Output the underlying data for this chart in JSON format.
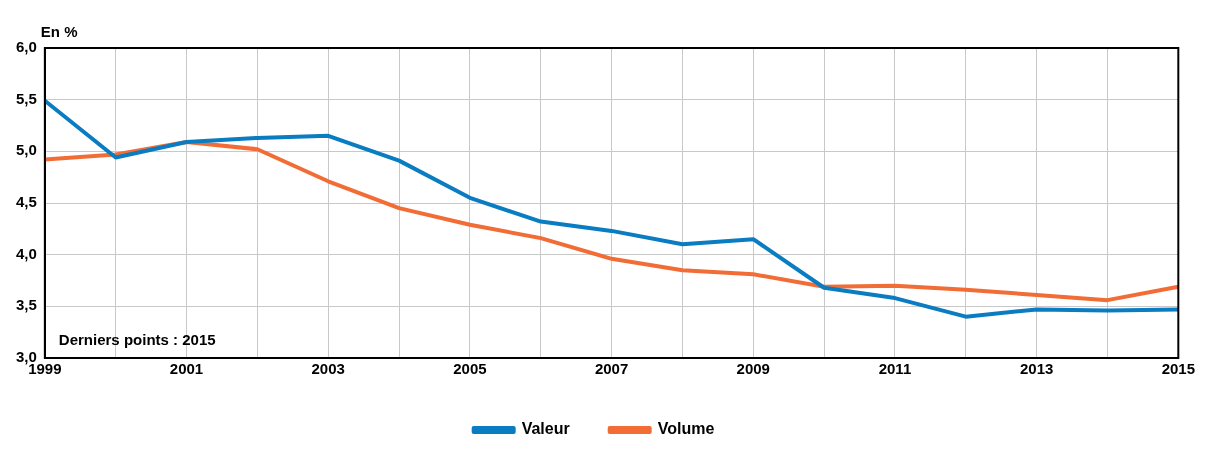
{
  "chart_data": {
    "type": "line",
    "ylabel": "En %",
    "annotations": [
      "Derniers points : 2015"
    ],
    "x": [
      1999,
      2000,
      2001,
      2002,
      2003,
      2004,
      2005,
      2006,
      2007,
      2008,
      2009,
      2010,
      2011,
      2012,
      2013,
      2014,
      2015
    ],
    "series": [
      {
        "name": "Valeur",
        "color": "#0a7cc1",
        "values": [
          5.49,
          4.94,
          5.09,
          5.13,
          5.15,
          4.91,
          4.55,
          4.32,
          4.23,
          4.1,
          4.15,
          3.68,
          3.58,
          3.4,
          3.47,
          3.46,
          3.47
        ]
      },
      {
        "name": "Volume",
        "color": "#f26c35",
        "values": [
          4.92,
          4.97,
          5.09,
          5.02,
          4.71,
          4.45,
          4.29,
          4.16,
          3.96,
          3.85,
          3.81,
          3.69,
          3.7,
          3.66,
          3.61,
          3.56,
          3.69
        ]
      }
    ],
    "xlim": [
      1999,
      2015
    ],
    "xticks": [
      1999,
      {
        "value": 2000,
        "label": null
      },
      2001,
      {
        "value": 2002,
        "label": null
      },
      2003,
      {
        "value": 2004,
        "label": null
      },
      2005,
      {
        "value": 2006,
        "label": null
      },
      2007,
      {
        "value": 2008,
        "label": null
      },
      2009,
      {
        "value": 2010,
        "label": null
      },
      2011,
      {
        "value": 2012,
        "label": null
      },
      2013,
      {
        "value": 2014,
        "label": null
      },
      2015
    ],
    "ylim": [
      3,
      6
    ],
    "yticks": [
      {
        "value": 3,
        "label": "3,0"
      },
      {
        "value": 3.5,
        "label": "3,5"
      },
      {
        "value": 4,
        "label": "4,0"
      },
      {
        "value": 4.5,
        "label": "4,5"
      },
      {
        "value": 5,
        "label": "5,0"
      },
      {
        "value": 5.5,
        "label": "5,5"
      },
      {
        "value": 6,
        "label": "6,0"
      }
    ],
    "grid": true,
    "legend": "bottom",
    "marker": "none",
    "line_style": "solid"
  }
}
